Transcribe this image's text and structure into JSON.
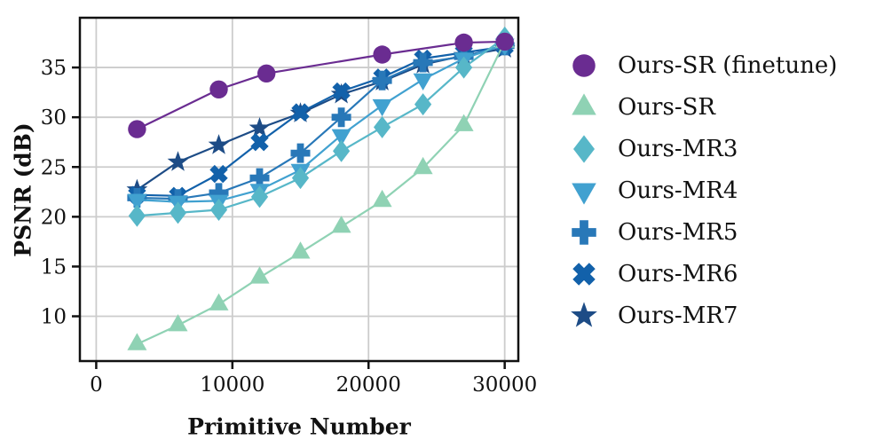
{
  "figure": {
    "background": "#ffffff",
    "grid_color": "#cccccc",
    "spine_color": "#111111",
    "text_color": "#111111"
  },
  "chart_data": {
    "type": "line",
    "title": "",
    "xlabel": "Primitive Number",
    "ylabel": "PSNR (dB)",
    "xlim": [
      -1200,
      31000
    ],
    "ylim": [
      5.5,
      40
    ],
    "x_ticks": [
      0,
      10000,
      20000,
      30000
    ],
    "y_ticks": [
      10,
      15,
      20,
      25,
      30,
      35
    ],
    "grid": true,
    "legend_position": "right",
    "series": [
      {
        "name": "Ours-SR (finetune)",
        "marker": "circle",
        "color": "#6a2c91",
        "x": [
          3000,
          9000,
          12500,
          21000,
          27000,
          30000
        ],
        "y": [
          28.8,
          32.8,
          34.4,
          36.3,
          37.5,
          37.6
        ]
      },
      {
        "name": "Ours-SR",
        "marker": "triangle-up",
        "color": "#8fd2b4",
        "x": [
          3000,
          6000,
          9000,
          12000,
          15000,
          18000,
          21000,
          24000,
          27000,
          30000
        ],
        "y": [
          7.2,
          9.1,
          11.2,
          13.9,
          16.4,
          19.0,
          21.6,
          24.9,
          29.2,
          37.6
        ]
      },
      {
        "name": "Ours-MR3",
        "marker": "diamond",
        "color": "#57b7c8",
        "x": [
          3000,
          6000,
          9000,
          12000,
          15000,
          18000,
          21000,
          24000,
          27000,
          30000
        ],
        "y": [
          20.1,
          20.4,
          20.7,
          22.0,
          23.9,
          26.6,
          29.0,
          31.3,
          35.0,
          38.0
        ]
      },
      {
        "name": "Ours-MR4",
        "marker": "triangle-down",
        "color": "#41a1d0",
        "x": [
          3000,
          6000,
          9000,
          12000,
          15000,
          18000,
          21000,
          24000,
          27000,
          30000
        ],
        "y": [
          21.7,
          21.5,
          21.6,
          22.7,
          24.7,
          28.2,
          31.2,
          33.8,
          35.9,
          37.3
        ]
      },
      {
        "name": "Ours-MR5",
        "marker": "plus",
        "color": "#2878b8",
        "x": [
          3000,
          6000,
          9000,
          12000,
          15000,
          18000,
          21000,
          24000,
          27000,
          30000
        ],
        "y": [
          21.9,
          21.8,
          22.4,
          23.9,
          26.4,
          30.0,
          33.7,
          35.5,
          36.1,
          37.2
        ]
      },
      {
        "name": "Ours-MR6",
        "marker": "x",
        "color": "#1261aa",
        "x": [
          3000,
          6000,
          9000,
          12000,
          15000,
          18000,
          21000,
          24000,
          27000,
          30000
        ],
        "y": [
          22.2,
          22.1,
          24.3,
          27.5,
          30.5,
          32.6,
          34.0,
          35.9,
          36.5,
          37.1
        ]
      },
      {
        "name": "Ours-MR7",
        "marker": "star",
        "color": "#1d4c86",
        "x": [
          3000,
          6000,
          9000,
          12000,
          15000,
          18000,
          21000,
          24000,
          27000,
          30000
        ],
        "y": [
          22.7,
          25.5,
          27.2,
          28.9,
          30.4,
          32.3,
          33.6,
          35.3,
          36.2,
          36.9
        ]
      }
    ]
  }
}
